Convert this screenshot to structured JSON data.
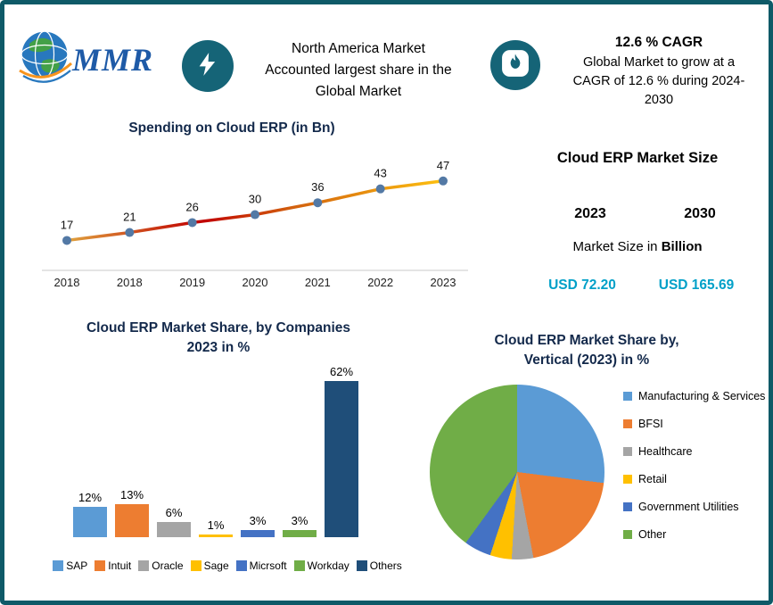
{
  "header": {
    "logo_text": "MMR",
    "highlight": "North America Market\nAccounted largest share in the\nGlobal Market",
    "cagr_title": "12.6 % CAGR",
    "cagr_body": "Global Market to grow at a\nCAGR of 12.6 % during 2024-\n2030"
  },
  "market_size": {
    "title": "Cloud ERP Market Size",
    "year_left": "2023",
    "year_right": "2030",
    "subtitle_prefix": "Market Size in ",
    "subtitle_bold": "Billion",
    "value_left": "USD 72.20",
    "value_right": "USD 165.69"
  },
  "chart_data": [
    {
      "type": "line",
      "title": "Spending on Cloud ERP (in Bn)",
      "x": [
        "2018",
        "2018",
        "2019",
        "2020",
        "2021",
        "2022",
        "2023"
      ],
      "values": [
        17,
        21,
        26,
        30,
        36,
        43,
        47
      ],
      "ylim": [
        10,
        55
      ],
      "marker_color": "#5379a5",
      "line_gradient": [
        {
          "offset": "0%",
          "color": "#e0a33e"
        },
        {
          "offset": "35%",
          "color": "#c00000"
        },
        {
          "offset": "60%",
          "color": "#d2600e"
        },
        {
          "offset": "100%",
          "color": "#fdc010"
        }
      ],
      "data_labels": true,
      "grid": false
    },
    {
      "type": "bar",
      "title": "Cloud ERP Market Share, by Companies\n2023 in %",
      "categories": [
        "SAP",
        "Intuit",
        "Oracle",
        "Sage",
        "Micrsoft",
        "Workday",
        "Others"
      ],
      "values": [
        12,
        13,
        6,
        1,
        3,
        3,
        62
      ],
      "value_suffix": "%",
      "colors": [
        "#5B9BD5",
        "#ED7D31",
        "#A5A5A5",
        "#FFC000",
        "#4472C4",
        "#70AD47",
        "#1F4E79"
      ],
      "ylim": [
        0,
        62
      ],
      "legend_position": "bottom"
    },
    {
      "type": "pie",
      "title": "Cloud ERP Market Share by,\nVertical (2023) in %",
      "labels": [
        "Manufacturing & Services",
        "BFSI",
        "Healthcare",
        "Retail",
        "Government Utilities",
        "Other"
      ],
      "values": [
        27,
        20,
        4,
        4,
        5,
        40
      ],
      "colors": [
        "#5B9BD5",
        "#ED7D31",
        "#A5A5A5",
        "#FFC000",
        "#4472C4",
        "#70AD47"
      ],
      "legend_position": "right"
    }
  ],
  "colors": {
    "page_border": "#0e5a68",
    "icon_circle": "#156477",
    "title_navy": "#13294b",
    "accent_teal": "#00a0c8"
  }
}
